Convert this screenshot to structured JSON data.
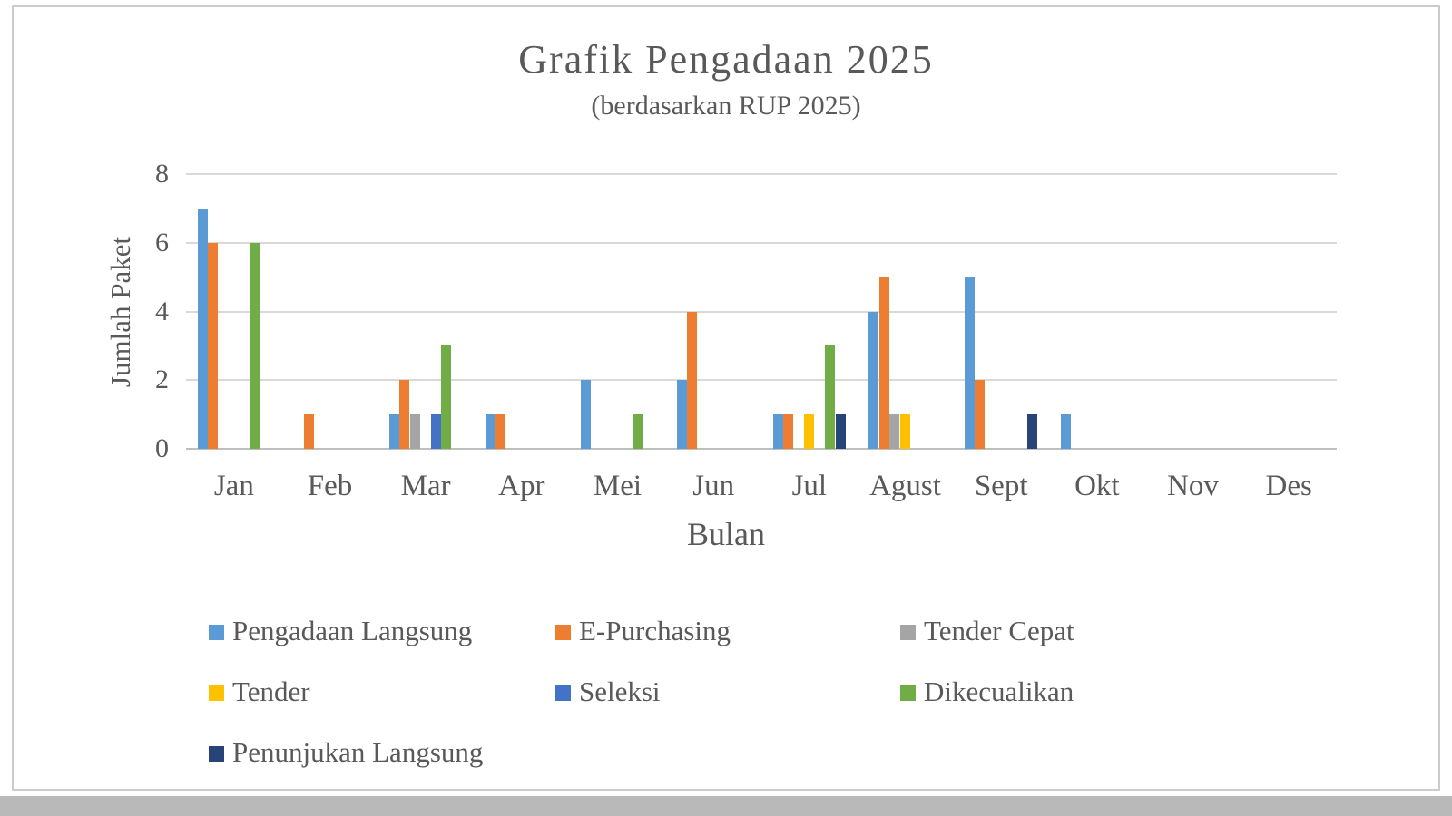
{
  "chart_data": {
    "type": "bar",
    "title": "Grafik Pengadaan 2025",
    "subtitle": "(berdasarkan RUP 2025)",
    "xlabel": "Bulan",
    "ylabel": "Jumlah Paket",
    "ylim": [
      0,
      8
    ],
    "yticks": [
      0,
      2,
      4,
      6,
      8
    ],
    "grid": "horizontal",
    "legend_position": "bottom-left",
    "categories": [
      "Jan",
      "Feb",
      "Mar",
      "Apr",
      "Mei",
      "Jun",
      "Jul",
      "Agust",
      "Sept",
      "Okt",
      "Nov",
      "Des"
    ],
    "series": [
      {
        "name": "Pengadaan Langsung",
        "color": "#5B9BD5",
        "values": [
          7,
          0,
          1,
          1,
          2,
          2,
          1,
          4,
          5,
          1,
          0,
          0
        ]
      },
      {
        "name": "E-Purchasing",
        "color": "#ED7D31",
        "values": [
          6,
          1,
          2,
          1,
          0,
          4,
          1,
          5,
          2,
          0,
          0,
          0
        ]
      },
      {
        "name": "Tender Cepat",
        "color": "#A5A5A5",
        "values": [
          0,
          0,
          1,
          0,
          0,
          0,
          0,
          1,
          0,
          0,
          0,
          0
        ]
      },
      {
        "name": "Tender",
        "color": "#FFC000",
        "values": [
          0,
          0,
          0,
          0,
          0,
          0,
          1,
          1,
          0,
          0,
          0,
          0
        ]
      },
      {
        "name": "Seleksi",
        "color": "#4472C4",
        "values": [
          0,
          0,
          1,
          0,
          0,
          0,
          0,
          0,
          0,
          0,
          0,
          0
        ]
      },
      {
        "name": "Dikecualikan",
        "color": "#70AD47",
        "values": [
          6,
          0,
          3,
          0,
          1,
          0,
          3,
          0,
          0,
          0,
          0,
          0
        ]
      },
      {
        "name": "Penunjukan Langsung",
        "color": "#264478",
        "values": [
          0,
          0,
          0,
          0,
          0,
          0,
          1,
          0,
          1,
          0,
          0,
          0
        ]
      }
    ]
  },
  "colors": {
    "text": "#595959",
    "gridline": "#D9D9D9",
    "axis_line": "#BFBFBF",
    "frame_border": "#CCCCCC",
    "bottom_bar": "#B9B9B9"
  }
}
